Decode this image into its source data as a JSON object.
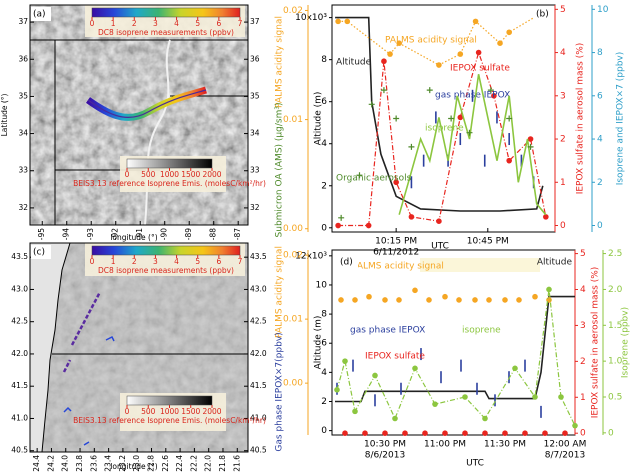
{
  "chart_data": [
    {
      "type": "map",
      "label": "(a)",
      "xlabel": "longitude (°)",
      "ylabel": "Latitude (°)",
      "xlim": [
        -95.5,
        -86.6
      ],
      "ylim": [
        31.54,
        37.46
      ],
      "xticks": [
        -95,
        -94,
        -93,
        -92,
        -91,
        -90,
        -89,
        -88,
        -87
      ],
      "yticks": [
        32,
        33,
        34,
        35,
        36,
        37
      ],
      "colorbar": {
        "label": "DC8 isoprene measurements (ppbv)",
        "lim": [
          0,
          7
        ],
        "ticks": [
          0,
          1,
          2,
          3,
          4,
          5,
          6,
          7
        ]
      },
      "colorbar2": {
        "label": "BEIS3.13 reference Isoprene Emis. (molesC/km²/hr)",
        "lim": [
          0,
          2000
        ],
        "ticks": [
          0,
          500,
          1000,
          1500,
          2000
        ]
      }
    },
    {
      "type": "multi",
      "label": "(b)",
      "xlabel": "UTC",
      "xlim": [
        1314,
        1387
      ],
      "xticks": [
        {
          "value": 1335,
          "label": "10:15 PM"
        },
        {
          "value": 1365,
          "label": "10:45 PM"
        }
      ],
      "date_ticks": [
        {
          "value": 1335,
          "label": "6/11/2012"
        }
      ],
      "ylabel": "Altitude (m)",
      "ylim": [
        -0.2,
        10.6
      ],
      "yticks": [
        0,
        2,
        4,
        6,
        8,
        {
          "value": 10,
          "label": "10x10³"
        }
      ],
      "y2label": "PALMS acidity signal",
      "y2lim": [
        -0.0003,
        0.0205
      ],
      "y2ticks": [
        {
          "value": 0,
          "label": "0.00"
        },
        0.01,
        0.02
      ],
      "y3label": "Submicron OA (AMS) (μg/sm³)",
      "y3lim": [
        0,
        8
      ],
      "y4label": "IEPOX sulfate in aerosol mass (%)",
      "y4lim": [
        -0.15,
        5.1
      ],
      "y4ticks": [
        0,
        1,
        2,
        3,
        4,
        5
      ],
      "y5label": "Isoprene and IEPOX×7 (ppbv)",
      "y5lim": [
        -0.3,
        10.2
      ],
      "y5ticks": [
        0,
        2,
        4,
        6,
        8,
        10
      ],
      "series": [
        {
          "name": "Altitude",
          "color": "#222222",
          "axis": "y",
          "style": "line",
          "x": [
            1315,
            1326,
            1327,
            1330,
            1335,
            1343,
            1356,
            1369,
            1381,
            1383
          ],
          "values": [
            10,
            10,
            6,
            3.5,
            1.5,
            0.9,
            0.8,
            0.8,
            0.9,
            2
          ]
        },
        {
          "name": "PALMS acidity signal",
          "color": "#f5a623",
          "axis": "y2",
          "style": "dotline",
          "x": [
            1316,
            1319,
            1333,
            1336,
            1349,
            1356,
            1361,
            1369,
            1372,
            1384
          ],
          "values": [
            0.019,
            0.019,
            0.016,
            0.017,
            0.015,
            0.016,
            0.019,
            0.017,
            0.018,
            0.02
          ]
        },
        {
          "name": "IEPOX sulfate",
          "color": "#e8251f",
          "axis": "y4",
          "style": "linedots",
          "x": [
            1316,
            1326,
            1331,
            1335,
            1340,
            1349,
            1356,
            1362,
            1367,
            1372,
            1379,
            1384
          ],
          "values": [
            0,
            0,
            3.8,
            1,
            0.2,
            0.1,
            2.5,
            4,
            3,
            1.5,
            2,
            0.2
          ]
        },
        {
          "name": "gas phase IEPOX",
          "color": "#2b3f9e",
          "axis": "y5",
          "style": "bars",
          "x": [
            1340,
            1344,
            1348,
            1352,
            1356,
            1360,
            1364,
            1368,
            1372,
            1376,
            1380
          ],
          "values": [
            2,
            3,
            5,
            3,
            4,
            6,
            3,
            5,
            4,
            3,
            2
          ]
        },
        {
          "name": "isoprene",
          "color": "#8cc63f",
          "axis": "y5",
          "style": "line",
          "x": [
            1336,
            1339,
            1343,
            1346,
            1349,
            1352,
            1355,
            1359,
            1362,
            1365,
            1368,
            1372,
            1375,
            1378,
            1381,
            1384
          ],
          "values": [
            0.5,
            2,
            4,
            3,
            5,
            3,
            6,
            4,
            7,
            5,
            3,
            6,
            2,
            4,
            1,
            0.5
          ]
        },
        {
          "name": "Organic aerosols",
          "color": "#4f8a2b",
          "axis": "y3",
          "style": "plus",
          "x": [
            1317,
            1323,
            1327,
            1331,
            1335,
            1340,
            1346,
            1353,
            1359,
            1366,
            1372,
            1379
          ],
          "values": [
            0.5,
            2,
            4.5,
            5,
            4,
            3,
            5,
            4,
            3.5,
            5,
            4,
            3
          ]
        }
      ]
    },
    {
      "type": "map",
      "label": "(c)",
      "xlabel": "longitude (°)",
      "xlim": [
        -124.5,
        -121.45
      ],
      "ylim": [
        40.48,
        43.72
      ],
      "xticks": [
        -124.4,
        -124.2,
        {
          "value": -124,
          "label": "-124.0"
        },
        -123.8,
        -123.6,
        -123.4,
        -123.2,
        {
          "value": -123,
          "label": "-123.0"
        },
        -122.8,
        -122.6,
        -122.4,
        -122.2,
        {
          "value": -122,
          "label": "-122.0"
        },
        -121.8,
        -121.6
      ],
      "yticks": [
        40.5,
        {
          "value": 41,
          "label": "41.0"
        },
        41.5,
        {
          "value": 42,
          "label": "42.0"
        },
        42.5,
        {
          "value": 43,
          "label": "43.0"
        },
        43.5
      ],
      "colorbar": {
        "label": "DC8 isoprene measurements (ppbv)",
        "lim": [
          0,
          7
        ],
        "ticks": [
          0,
          1,
          2,
          3,
          4,
          5,
          6,
          7
        ]
      },
      "colorbar2": {
        "label": "BEIS3.13 reference Isoprene Emis. (molesC/km²/hr)",
        "lim": [
          0,
          2000
        ],
        "ticks": [
          0,
          500,
          1000,
          1500,
          2000
        ]
      }
    },
    {
      "type": "multi",
      "label": "(d)",
      "xlabel": "UTC",
      "xlim": [
        1323.5,
        1445
      ],
      "xticks": [
        {
          "value": 1350,
          "label": "10:30 PM"
        },
        {
          "value": 1380,
          "label": "11:00 PM"
        },
        {
          "value": 1410,
          "label": "11:30 PM"
        },
        {
          "value": 1440,
          "label": "12:00 AM"
        }
      ],
      "date_ticks": [
        {
          "value": 1350,
          "label": "8/6/2013"
        },
        {
          "value": 1440,
          "label": "8/7/2013"
        }
      ],
      "ylabel": "Altitude (m)",
      "ylim": [
        -0.3,
        12.4
      ],
      "yticks": [
        0,
        2,
        4,
        6,
        8,
        10,
        {
          "value": 12,
          "label": "12x10³"
        }
      ],
      "y2label": "PALMS acidity signal",
      "y2lim": [
        -0.0081,
        0.0208
      ],
      "y2ticks": [
        {
          "value": 0,
          "label": "0.00"
        },
        0.01,
        0.02
      ],
      "y3label": "Gas phase IEPOX×7(ppbv)",
      "y3lim": [
        0,
        8
      ],
      "y4label": "IEPOX sulfate in aerosol mass (%)",
      "y4lim": [
        -0.05,
        5.1
      ],
      "y4ticks": [
        0,
        1,
        2,
        3,
        4,
        5
      ],
      "y5label": "Isoprene (ppbv)",
      "y5lim": [
        -0.03,
        2.55
      ],
      "y5ticks": [
        0,
        0.5,
        {
          "value": 1,
          "label": "1.0"
        },
        1.5,
        {
          "value": 2,
          "label": "2.0"
        },
        2.5
      ],
      "series": [
        {
          "name": "Altitude",
          "color": "#222222",
          "axis": "y",
          "style": "line",
          "x": [
            1325,
            1338,
            1340,
            1400,
            1402,
            1425,
            1428,
            1432,
            1445
          ],
          "values": [
            2,
            2,
            2.7,
            2.7,
            2.2,
            2.2,
            4,
            9.2,
            9.2
          ]
        },
        {
          "name": "PALMS acidity signal",
          "color": "#f5a623",
          "axis": "y2",
          "style": "dots",
          "x": [
            1328,
            1335,
            1342,
            1350,
            1357,
            1365,
            1372,
            1380,
            1387,
            1395,
            1402,
            1410,
            1417,
            1425,
            1432
          ],
          "values": [
            0.013,
            0.013,
            0.0135,
            0.013,
            0.013,
            0.0145,
            0.013,
            0.0135,
            0.013,
            0.013,
            0.013,
            0.013,
            0.013,
            0.0135,
            0.013
          ]
        },
        {
          "name": "gas phase  IEPOX",
          "color": "#2b3f9e",
          "axis": "y3",
          "style": "bars",
          "x": [
            1326,
            1334,
            1345,
            1358,
            1368,
            1378,
            1388,
            1396,
            1405,
            1412,
            1420,
            1428
          ],
          "values": [
            2,
            3,
            1.5,
            2,
            3.5,
            2.5,
            3,
            2,
            1.5,
            2.5,
            3,
            1
          ]
        },
        {
          "name": "isoprene",
          "color": "#8cc63f",
          "axis": "y5",
          "style": "linedots",
          "x": [
            1326,
            1330,
            1335,
            1345,
            1355,
            1365,
            1375,
            1390,
            1400,
            1415,
            1425,
            1432,
            1438,
            1445
          ],
          "values": [
            0.6,
            1.0,
            0.3,
            0.8,
            0.2,
            0.9,
            0.4,
            0.5,
            0.2,
            0.9,
            0.5,
            2.0,
            0.5,
            0.1
          ]
        },
        {
          "name": "IEPOX sulfate",
          "color": "#e8251f",
          "axis": "y4",
          "style": "dots",
          "x": [
            1330,
            1340,
            1350,
            1360,
            1370,
            1380,
            1390,
            1400,
            1410,
            1420,
            1430,
            1440
          ],
          "values": [
            0,
            0,
            0,
            0,
            0,
            0,
            0,
            0,
            0,
            0,
            0,
            0
          ]
        }
      ]
    }
  ]
}
